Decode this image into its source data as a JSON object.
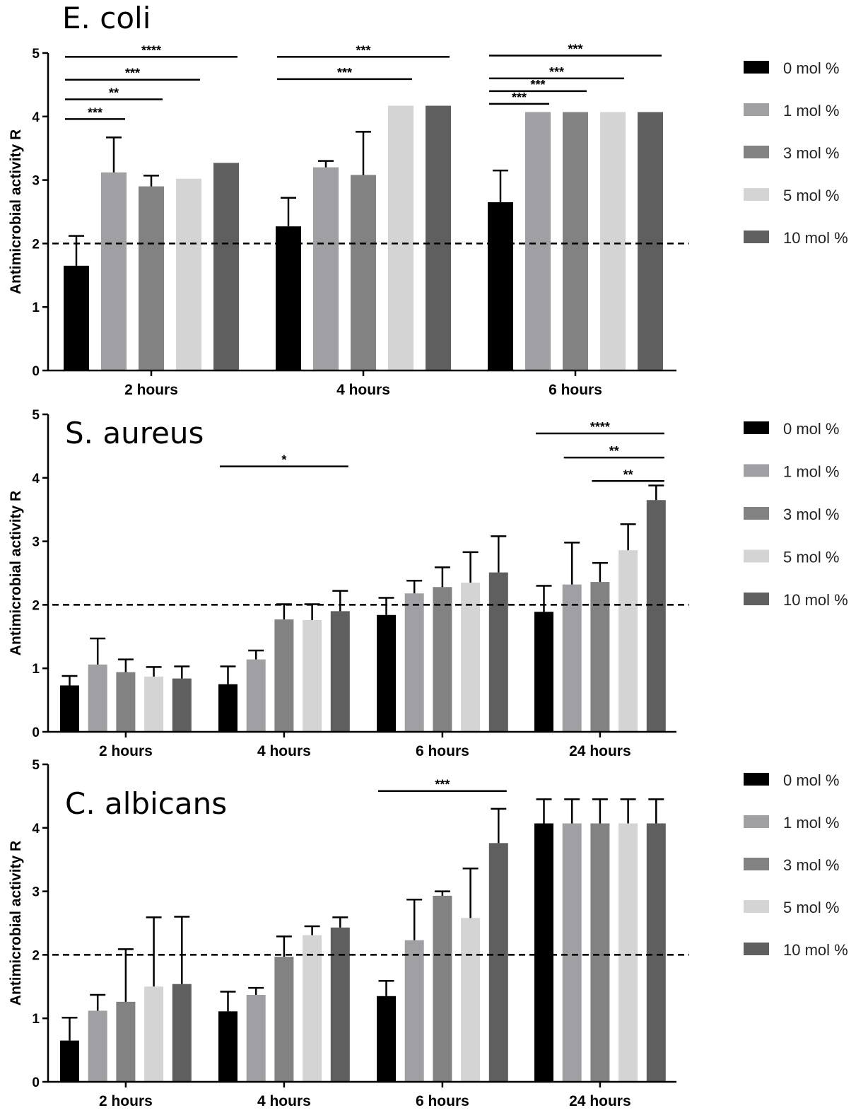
{
  "legend": [
    "0 mol %",
    "1 mol %",
    "3 mol %",
    "5 mol %",
    "10 mol %"
  ],
  "colors": {
    "0 mol %": "#000000",
    "1 mol %": "#a0a0a4",
    "3 mol %": "#828282",
    "5 mol %": "#d4d4d4",
    "10 mol %": "#5f5f5f",
    "axis": "#000000"
  },
  "chart_data": [
    {
      "type": "bar",
      "title": "E. coli",
      "ylabel": "Antimicrobial activity R",
      "ylim": [
        0,
        5
      ],
      "yticks": [
        "0",
        "1",
        "2",
        "3",
        "4",
        "5"
      ],
      "reference_line": 2,
      "legend_placement": "right",
      "categories": [
        "2 hours",
        "4 hours",
        "6 hours"
      ],
      "series": [
        {
          "name": "0 mol %",
          "values": [
            1.65,
            2.27,
            2.65
          ],
          "errors": [
            0.47,
            0.45,
            0.5
          ]
        },
        {
          "name": "1 mol %",
          "values": [
            3.12,
            3.2,
            4.07
          ],
          "errors": [
            0.55,
            0.1,
            0
          ]
        },
        {
          "name": "3 mol %",
          "values": [
            2.9,
            3.08,
            4.07
          ],
          "errors": [
            0.17,
            0.68,
            0
          ]
        },
        {
          "name": "5 mol %",
          "values": [
            3.02,
            4.17,
            4.07
          ],
          "errors": [
            0,
            0,
            0
          ]
        },
        {
          "name": "10 mol %",
          "values": [
            3.27,
            4.17,
            4.07
          ],
          "errors": [
            0,
            0,
            0
          ]
        }
      ],
      "significance": [
        {
          "group": 0,
          "from": 0,
          "to": 1,
          "label": "***",
          "y": 3.96
        },
        {
          "group": 0,
          "from": 0,
          "to": 2,
          "label": "**",
          "y": 4.27
        },
        {
          "group": 0,
          "from": 0,
          "to": 3,
          "label": "***",
          "y": 4.58
        },
        {
          "group": 0,
          "from": 0,
          "to": 4,
          "label": "****",
          "y": 4.94
        },
        {
          "group": 1,
          "from": 0,
          "to": 3,
          "label": "***",
          "y": 4.59
        },
        {
          "group": 1,
          "from": 0,
          "to": 4,
          "label": "***",
          "y": 4.94
        },
        {
          "group": 2,
          "from": 0,
          "to": 1,
          "label": "***",
          "y": 4.2
        },
        {
          "group": 2,
          "from": 0,
          "to": 2,
          "label": "***",
          "y": 4.4
        },
        {
          "group": 2,
          "from": 0,
          "to": 3,
          "label": "***",
          "y": 4.6
        },
        {
          "group": 2,
          "from": 0,
          "to": 4,
          "label": "***",
          "y": 4.96
        }
      ]
    },
    {
      "type": "bar",
      "title": "S. aureus",
      "ylabel": "Antimicrobial activity R",
      "ylim": [
        0,
        5
      ],
      "yticks": [
        "0",
        "1",
        "2",
        "3",
        "4",
        "5"
      ],
      "reference_line": 2,
      "legend_placement": "right",
      "categories": [
        "2 hours",
        "4 hours",
        "6 hours",
        "24 hours"
      ],
      "series": [
        {
          "name": "0 mol %",
          "values": [
            0.73,
            0.75,
            1.84,
            1.89
          ],
          "errors": [
            0.15,
            0.28,
            0.27,
            0.41
          ]
        },
        {
          "name": "1 mol %",
          "values": [
            1.06,
            1.14,
            2.18,
            2.32
          ],
          "errors": [
            0.41,
            0.14,
            0.2,
            0.66
          ]
        },
        {
          "name": "3 mol %",
          "values": [
            0.94,
            1.77,
            2.28,
            2.36
          ],
          "errors": [
            0.2,
            0.24,
            0.31,
            0.3
          ]
        },
        {
          "name": "5 mol %",
          "values": [
            0.87,
            1.76,
            2.35,
            2.86
          ],
          "errors": [
            0.15,
            0.25,
            0.48,
            0.41
          ]
        },
        {
          "name": "10 mol %",
          "values": [
            0.84,
            1.9,
            2.51,
            3.65
          ],
          "errors": [
            0.19,
            0.32,
            0.57,
            0.23
          ]
        }
      ],
      "significance": [
        {
          "group": 1,
          "from": 0,
          "to": 4,
          "label": "*",
          "y": 4.18
        },
        {
          "group": 3,
          "from": 2,
          "to": 4,
          "label": "**",
          "y": 3.95
        },
        {
          "group": 3,
          "from": 1,
          "to": 4,
          "label": "**",
          "y": 4.32
        },
        {
          "group": 3,
          "from": 0,
          "to": 4,
          "label": "****",
          "y": 4.7
        }
      ]
    },
    {
      "type": "bar",
      "title": "C. albicans",
      "ylabel": "Antimicrobial activity R",
      "ylim": [
        0,
        5
      ],
      "yticks": [
        "0",
        "1",
        "2",
        "3",
        "4",
        "5"
      ],
      "reference_line": 2,
      "legend_placement": "right",
      "categories": [
        "2 hours",
        "4 hours",
        "6 hours",
        "24 hours"
      ],
      "series": [
        {
          "name": "0 mol %",
          "values": [
            0.65,
            1.11,
            1.35,
            4.07
          ],
          "errors": [
            0.36,
            0.31,
            0.24,
            0.38
          ]
        },
        {
          "name": "1 mol %",
          "values": [
            1.12,
            1.37,
            2.23,
            4.07
          ],
          "errors": [
            0.25,
            0.11,
            0.64,
            0.38
          ]
        },
        {
          "name": "3 mol %",
          "values": [
            1.26,
            1.97,
            2.93,
            4.07
          ],
          "errors": [
            0.83,
            0.32,
            0.07,
            0.38
          ]
        },
        {
          "name": "5 mol %",
          "values": [
            1.5,
            2.31,
            2.58,
            4.07
          ],
          "errors": [
            1.09,
            0.14,
            0.78,
            0.38
          ]
        },
        {
          "name": "10 mol %",
          "values": [
            1.54,
            2.43,
            3.76,
            4.07
          ],
          "errors": [
            1.06,
            0.16,
            0.54,
            0.38
          ]
        }
      ],
      "significance": [
        {
          "group": 2,
          "from": 0,
          "to": 4,
          "label": "***",
          "y": 4.58
        }
      ]
    }
  ]
}
